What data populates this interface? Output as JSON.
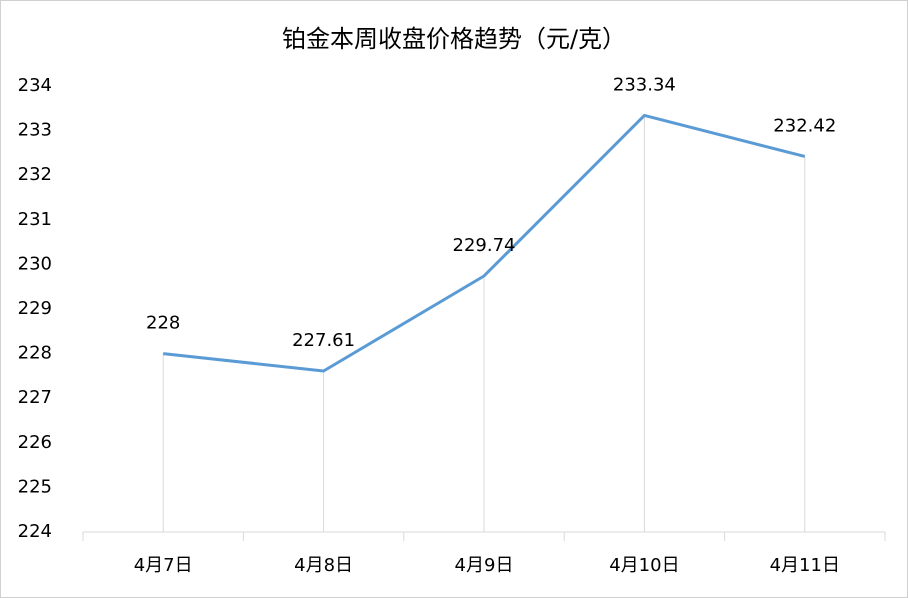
{
  "chart_data": {
    "type": "line",
    "title": "铂金本周收盘价格趋势（元/克）",
    "categories": [
      "4月7日",
      "4月8日",
      "4月9日",
      "4月10日",
      "4月11日"
    ],
    "values": [
      228,
      227.61,
      229.74,
      233.34,
      232.42
    ],
    "color": "#5b9bd5",
    "data_labels": true,
    "drop_lines": true,
    "ylim": [
      224,
      234
    ],
    "yticks": [
      224,
      225,
      226,
      227,
      228,
      229,
      230,
      231,
      232,
      233,
      234
    ],
    "grid": false
  }
}
